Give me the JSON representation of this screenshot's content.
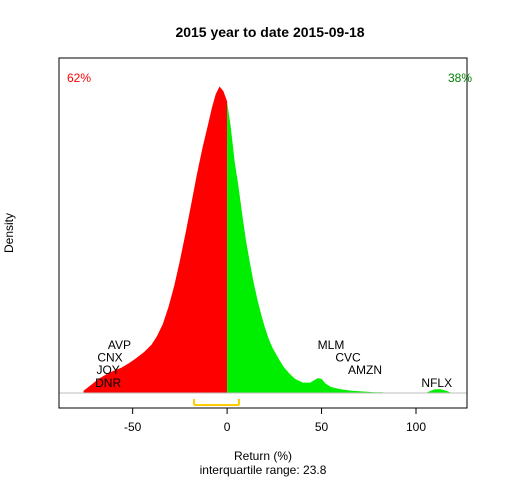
{
  "chart_data": {
    "type": "area",
    "title": "2015  year to date 2015-09-18",
    "xlabel": "Return (%)",
    "ylabel": "Density",
    "subtitle": "interquartile range: 23.8",
    "xlim": [
      -89,
      127
    ],
    "ylim": [
      0,
      0.0445
    ],
    "xticks": [
      -50,
      0,
      50,
      100
    ],
    "grid": false,
    "split_at": 0,
    "negative_share": "62%",
    "positive_share": "38%",
    "colors": {
      "negative": "#ff0000",
      "positive": "#00ee00",
      "negative_label": "#ff0000",
      "positive_label": "#008000",
      "iqr_bracket": "#ffcc00",
      "baseline": "#bebebe"
    },
    "interquartile_range": {
      "low": -17.5,
      "high": 6.3,
      "width": 23.8
    },
    "density": {
      "x": [
        -76,
        -72,
        -68,
        -64,
        -60,
        -56,
        -52,
        -48,
        -44,
        -40,
        -37,
        -34,
        -31,
        -28,
        -25,
        -22,
        -19,
        -16,
        -13,
        -10,
        -8,
        -6,
        -4,
        -2,
        0,
        2,
        4,
        6,
        8,
        10,
        12,
        14,
        16,
        18,
        20,
        22,
        24,
        26,
        28,
        30,
        33,
        36,
        40,
        44,
        48,
        50,
        52,
        55,
        60,
        66,
        72,
        78,
        82,
        85,
        105,
        108,
        110,
        113,
        116,
        119
      ],
      "y": [
        0.0003,
        0.0011,
        0.0019,
        0.0025,
        0.003,
        0.0034,
        0.004,
        0.0047,
        0.0055,
        0.0065,
        0.0077,
        0.0093,
        0.0116,
        0.0144,
        0.0178,
        0.0215,
        0.0254,
        0.0294,
        0.033,
        0.0362,
        0.0384,
        0.0402,
        0.0412,
        0.0406,
        0.0392,
        0.0356,
        0.0311,
        0.0278,
        0.024,
        0.0205,
        0.0176,
        0.0149,
        0.0126,
        0.0106,
        0.0088,
        0.0073,
        0.0061,
        0.0052,
        0.0043,
        0.0035,
        0.0026,
        0.0019,
        0.0014,
        0.0014,
        0.002,
        0.0019,
        0.0013,
        0.0008,
        0.0005,
        0.0003,
        0.0002,
        0.0001,
        0.0001,
        0.0,
        0.0,
        0.0003,
        0.0005,
        0.0005,
        0.0003,
        0.0
      ]
    },
    "annotations": [
      {
        "text": "AVP",
        "x": -57,
        "y": 0.0054
      },
      {
        "text": "CNX",
        "x": -62,
        "y": 0.0037
      },
      {
        "text": "JOY",
        "x": -63,
        "y": 0.002
      },
      {
        "text": "DNR",
        "x": -63,
        "y": 0.0003
      },
      {
        "text": "MLM",
        "x": 55,
        "y": 0.0054
      },
      {
        "text": "CVC",
        "x": 64,
        "y": 0.0037
      },
      {
        "text": "AMZN",
        "x": 73,
        "y": 0.002
      },
      {
        "text": "NFLX",
        "x": 111,
        "y": 0.0003
      }
    ]
  }
}
